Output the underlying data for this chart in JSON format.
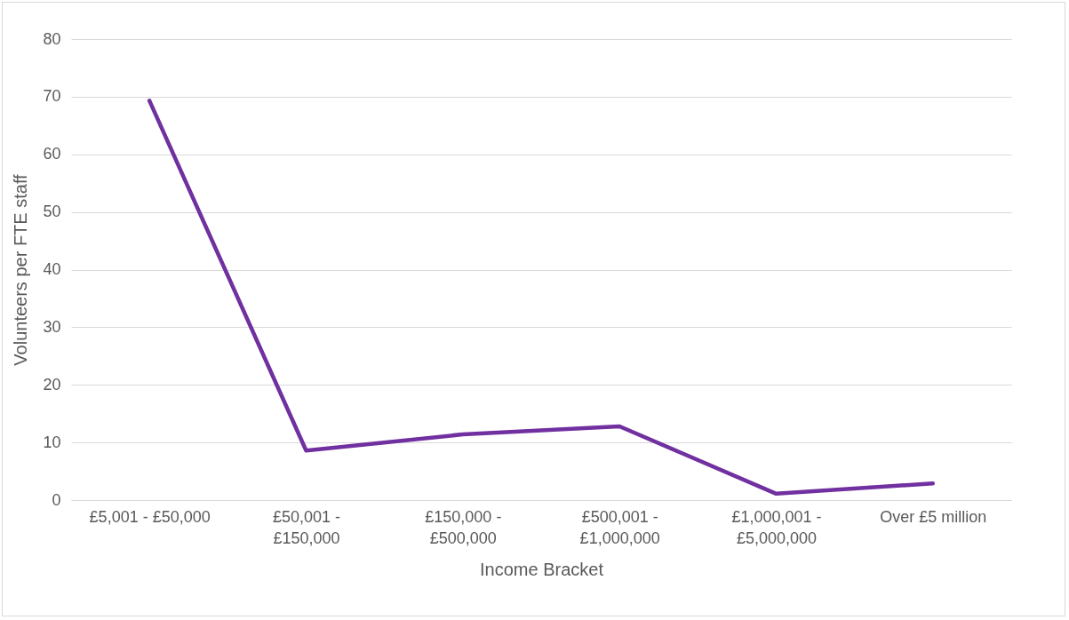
{
  "chart_data": {
    "type": "line",
    "xlabel": "Income Bracket",
    "ylabel": "Volunteers per FTE staff",
    "categories": [
      "£5,001 - £50,000",
      "£50,001 - £150,000",
      "£150,000 - £500,000",
      "£500,001 - £1,000,000",
      "£1,000,001 - £5,000,000",
      "Over £5 million"
    ],
    "series": [
      {
        "color": "#7030a0",
        "values": [
          69.3,
          8.6,
          11.4,
          12.8,
          1.1,
          2.9
        ]
      }
    ],
    "ylim": [
      0,
      80
    ],
    "yticks": [
      0,
      10,
      20,
      30,
      40,
      50,
      60,
      70,
      80
    ],
    "grid": "y",
    "legend": false,
    "marker": "none",
    "line_style": "solid"
  }
}
